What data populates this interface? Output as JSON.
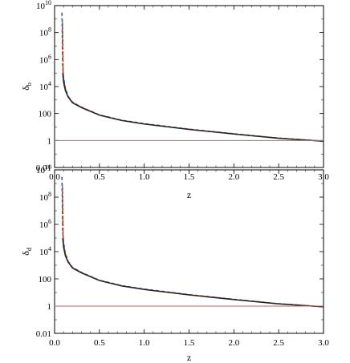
{
  "chart_data": [
    {
      "type": "line",
      "panel": "top",
      "title": "",
      "xlabel": "z",
      "ylabel": "δ",
      "ylabel_sub": "b",
      "xlim": [
        0.0,
        3.0
      ],
      "ylim_log10": [
        -2,
        10
      ],
      "yscale": "log",
      "x_ticks": [
        "0.0",
        "0.5",
        "1.0",
        "1.5",
        "2.0",
        "2.5",
        "3.0"
      ],
      "y_ticks": [
        {
          "base": "0.01",
          "exp": ""
        },
        {
          "base": "1",
          "exp": ""
        },
        {
          "base": "100",
          "exp": ""
        },
        {
          "base": "10",
          "exp": "4"
        },
        {
          "base": "10",
          "exp": "6"
        },
        {
          "base": "10",
          "exp": "8"
        },
        {
          "base": "10",
          "exp": "10"
        }
      ],
      "grid": false,
      "series": [
        {
          "color": "#1f3fbf",
          "dash": "4,3",
          "x": [
            0.082,
            0.09,
            0.1,
            0.12,
            0.15,
            0.2,
            0.3,
            0.5,
            0.75,
            1.0,
            1.5,
            2.0,
            2.5,
            3.0
          ],
          "y": [
            3000000000,
            300000,
            50000,
            8000,
            2000,
            700,
            300,
            80,
            32,
            18,
            7,
            3.2,
            1.5,
            0.9
          ]
        },
        {
          "color": "#2a9a2a",
          "dash": "5,3",
          "x": [
            0.086,
            0.095,
            0.1,
            0.12,
            0.15,
            0.2,
            0.3,
            0.5,
            0.75,
            1.0,
            1.5,
            2.0,
            2.5,
            3.0
          ],
          "y": [
            1000000000,
            150000,
            35000,
            7000,
            1900,
            680,
            290,
            78,
            31,
            17,
            6.8,
            3.1,
            1.5,
            0.9
          ]
        },
        {
          "color": "#cc2222",
          "dash": "3,2",
          "x": [
            0.088,
            0.095,
            0.1,
            0.12,
            0.15,
            0.2,
            0.3,
            0.5,
            0.75,
            1.0,
            1.5,
            2.0,
            2.5,
            3.0
          ],
          "y": [
            500000000,
            120000,
            30000,
            6500,
            1850,
            660,
            285,
            77,
            31,
            17,
            6.8,
            3.1,
            1.5,
            0.9
          ]
        },
        {
          "color": "#222222",
          "dash": "",
          "x": [
            0.09,
            0.1,
            0.12,
            0.15,
            0.2,
            0.3,
            0.5,
            0.75,
            1.0,
            1.5,
            2.0,
            2.5,
            3.0
          ],
          "y": [
            100000,
            20000,
            5000,
            1700,
            620,
            270,
            75,
            30,
            16.5,
            6.6,
            3.0,
            1.45,
            0.88
          ]
        },
        {
          "color": "#b06a6a",
          "dash": "",
          "x": [
            0.0,
            3.0
          ],
          "y": [
            1,
            1
          ]
        }
      ]
    },
    {
      "type": "line",
      "panel": "bottom",
      "title": "",
      "xlabel": "z",
      "ylabel": "δ",
      "ylabel_sub": "d",
      "xlim": [
        0.0,
        3.0
      ],
      "ylim_log10": [
        -2,
        10
      ],
      "yscale": "log",
      "x_ticks": [
        "0.0",
        "0.5",
        "1.0",
        "1.5",
        "2.0",
        "2.5",
        "3.0"
      ],
      "y_ticks": [
        {
          "base": "0.01",
          "exp": ""
        },
        {
          "base": "1",
          "exp": ""
        },
        {
          "base": "100",
          "exp": ""
        },
        {
          "base": "10",
          "exp": "4"
        },
        {
          "base": "10",
          "exp": "6"
        },
        {
          "base": "10",
          "exp": "8"
        },
        {
          "base": "10",
          "exp": "10"
        }
      ],
      "grid": false,
      "series": [
        {
          "color": "#1f3fbf",
          "dash": "4,3",
          "x": [
            0.082,
            0.09,
            0.1,
            0.12,
            0.15,
            0.2,
            0.3,
            0.5,
            0.75,
            1.0,
            1.5,
            2.0,
            2.5,
            3.0
          ],
          "y": [
            3000000000,
            300000,
            50000,
            8000,
            2000,
            700,
            300,
            80,
            32,
            18,
            7,
            3.2,
            1.5,
            0.9
          ]
        },
        {
          "color": "#2a9a2a",
          "dash": "5,3",
          "x": [
            0.086,
            0.095,
            0.1,
            0.12,
            0.15,
            0.2,
            0.3,
            0.5,
            0.75,
            1.0,
            1.5,
            2.0,
            2.5,
            3.0
          ],
          "y": [
            1000000000,
            150000,
            35000,
            7000,
            1900,
            680,
            290,
            78,
            31,
            17,
            6.8,
            3.1,
            1.5,
            0.9
          ]
        },
        {
          "color": "#cc2222",
          "dash": "3,2",
          "x": [
            0.088,
            0.095,
            0.1,
            0.12,
            0.15,
            0.2,
            0.3,
            0.5,
            0.75,
            1.0,
            1.5,
            2.0,
            2.5,
            3.0
          ],
          "y": [
            500000000,
            120000,
            30000,
            6500,
            1850,
            660,
            285,
            77,
            31,
            17,
            6.8,
            3.1,
            1.5,
            0.9
          ]
        },
        {
          "color": "#222222",
          "dash": "",
          "x": [
            0.09,
            0.1,
            0.12,
            0.15,
            0.2,
            0.3,
            0.5,
            0.75,
            1.0,
            1.5,
            2.0,
            2.5,
            3.0
          ],
          "y": [
            100000,
            20000,
            5000,
            1700,
            620,
            270,
            75,
            30,
            16.5,
            6.6,
            3.0,
            1.45,
            0.88
          ]
        },
        {
          "color": "#b06a6a",
          "dash": "",
          "x": [
            0.0,
            3.0
          ],
          "y": [
            1,
            1
          ]
        }
      ]
    }
  ]
}
